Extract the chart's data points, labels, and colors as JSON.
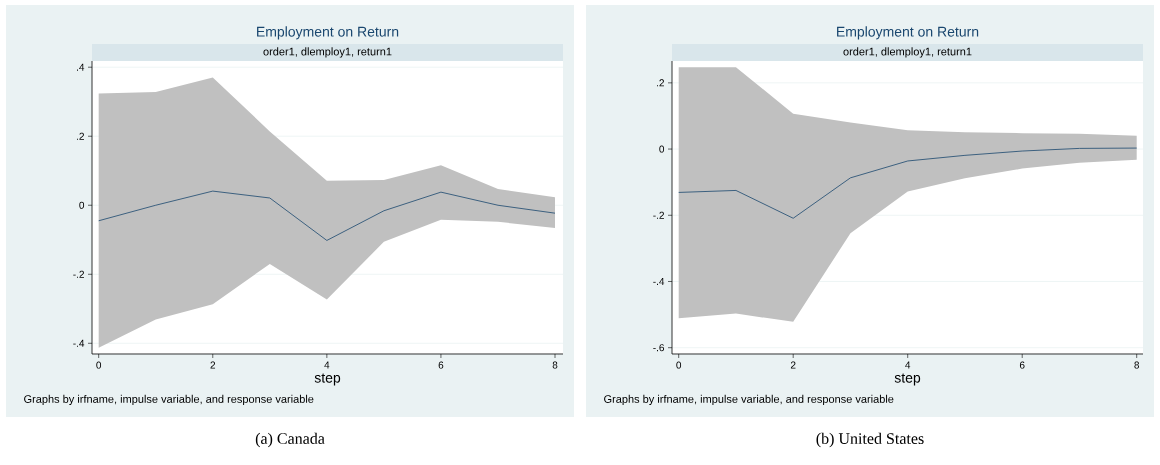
{
  "chart_data": [
    {
      "type": "line",
      "title": "Employment on Return",
      "subtitle": "order1, dlemploy1, return1",
      "xlabel": "step",
      "x": [
        0,
        1,
        2,
        3,
        4,
        5,
        6,
        7,
        8
      ],
      "series": [
        {
          "color": "#1a476f",
          "values": [
            -0.045,
            0.0,
            0.041,
            0.021,
            -0.102,
            -0.016,
            0.038,
            0.0,
            -0.023
          ],
          "upper": [
            0.324,
            0.328,
            0.37,
            0.214,
            0.071,
            0.073,
            0.116,
            0.047,
            0.023
          ],
          "lower": [
            -0.413,
            -0.331,
            -0.287,
            -0.17,
            -0.273,
            -0.106,
            -0.042,
            -0.048,
            -0.066
          ]
        }
      ],
      "xlim": [
        -0.117,
        8.14
      ],
      "ylim": [
        -0.431,
        0.418
      ],
      "xticks": [
        0,
        2,
        4,
        6,
        8
      ],
      "yticks": [
        {
          "value": -0.4,
          "label": "-.4"
        },
        {
          "value": -0.2,
          "label": "-.2"
        },
        0,
        {
          "value": 0.2,
          "label": ".2"
        },
        {
          "value": 0.4,
          "label": ".4"
        }
      ],
      "grid": "y",
      "annotations": [
        "Graphs by irfname, impulse variable, and response variable",
        "(a) Canada"
      ]
    },
    {
      "type": "line",
      "title": "Employment on Return",
      "subtitle": "order1, dlemploy1, return1",
      "xlabel": "step",
      "x": [
        0,
        1,
        2,
        3,
        4,
        5,
        6,
        7,
        8
      ],
      "series": [
        {
          "color": "#1a476f",
          "values": [
            -0.131,
            -0.125,
            -0.209,
            -0.087,
            -0.036,
            -0.019,
            -0.006,
            0.002,
            0.003
          ],
          "upper": [
            0.247,
            0.247,
            0.107,
            0.08,
            0.057,
            0.051,
            0.048,
            0.046,
            0.04
          ],
          "lower": [
            -0.511,
            -0.497,
            -0.522,
            -0.254,
            -0.128,
            -0.088,
            -0.059,
            -0.041,
            -0.032
          ]
        }
      ],
      "xlim": [
        -0.117,
        8.11
      ],
      "ylim": [
        -0.619,
        0.266
      ],
      "xticks": [
        0,
        2,
        4,
        6,
        8
      ],
      "yticks": [
        {
          "value": -0.6,
          "label": "-.6"
        },
        {
          "value": -0.4,
          "label": "-.4"
        },
        {
          "value": -0.2,
          "label": "-.2"
        },
        0,
        {
          "value": 0.2,
          "label": ".2"
        }
      ],
      "grid": "y",
      "annotations": [
        "Graphs by irfname, impulse variable, and response variable",
        "(b) United States"
      ]
    }
  ]
}
